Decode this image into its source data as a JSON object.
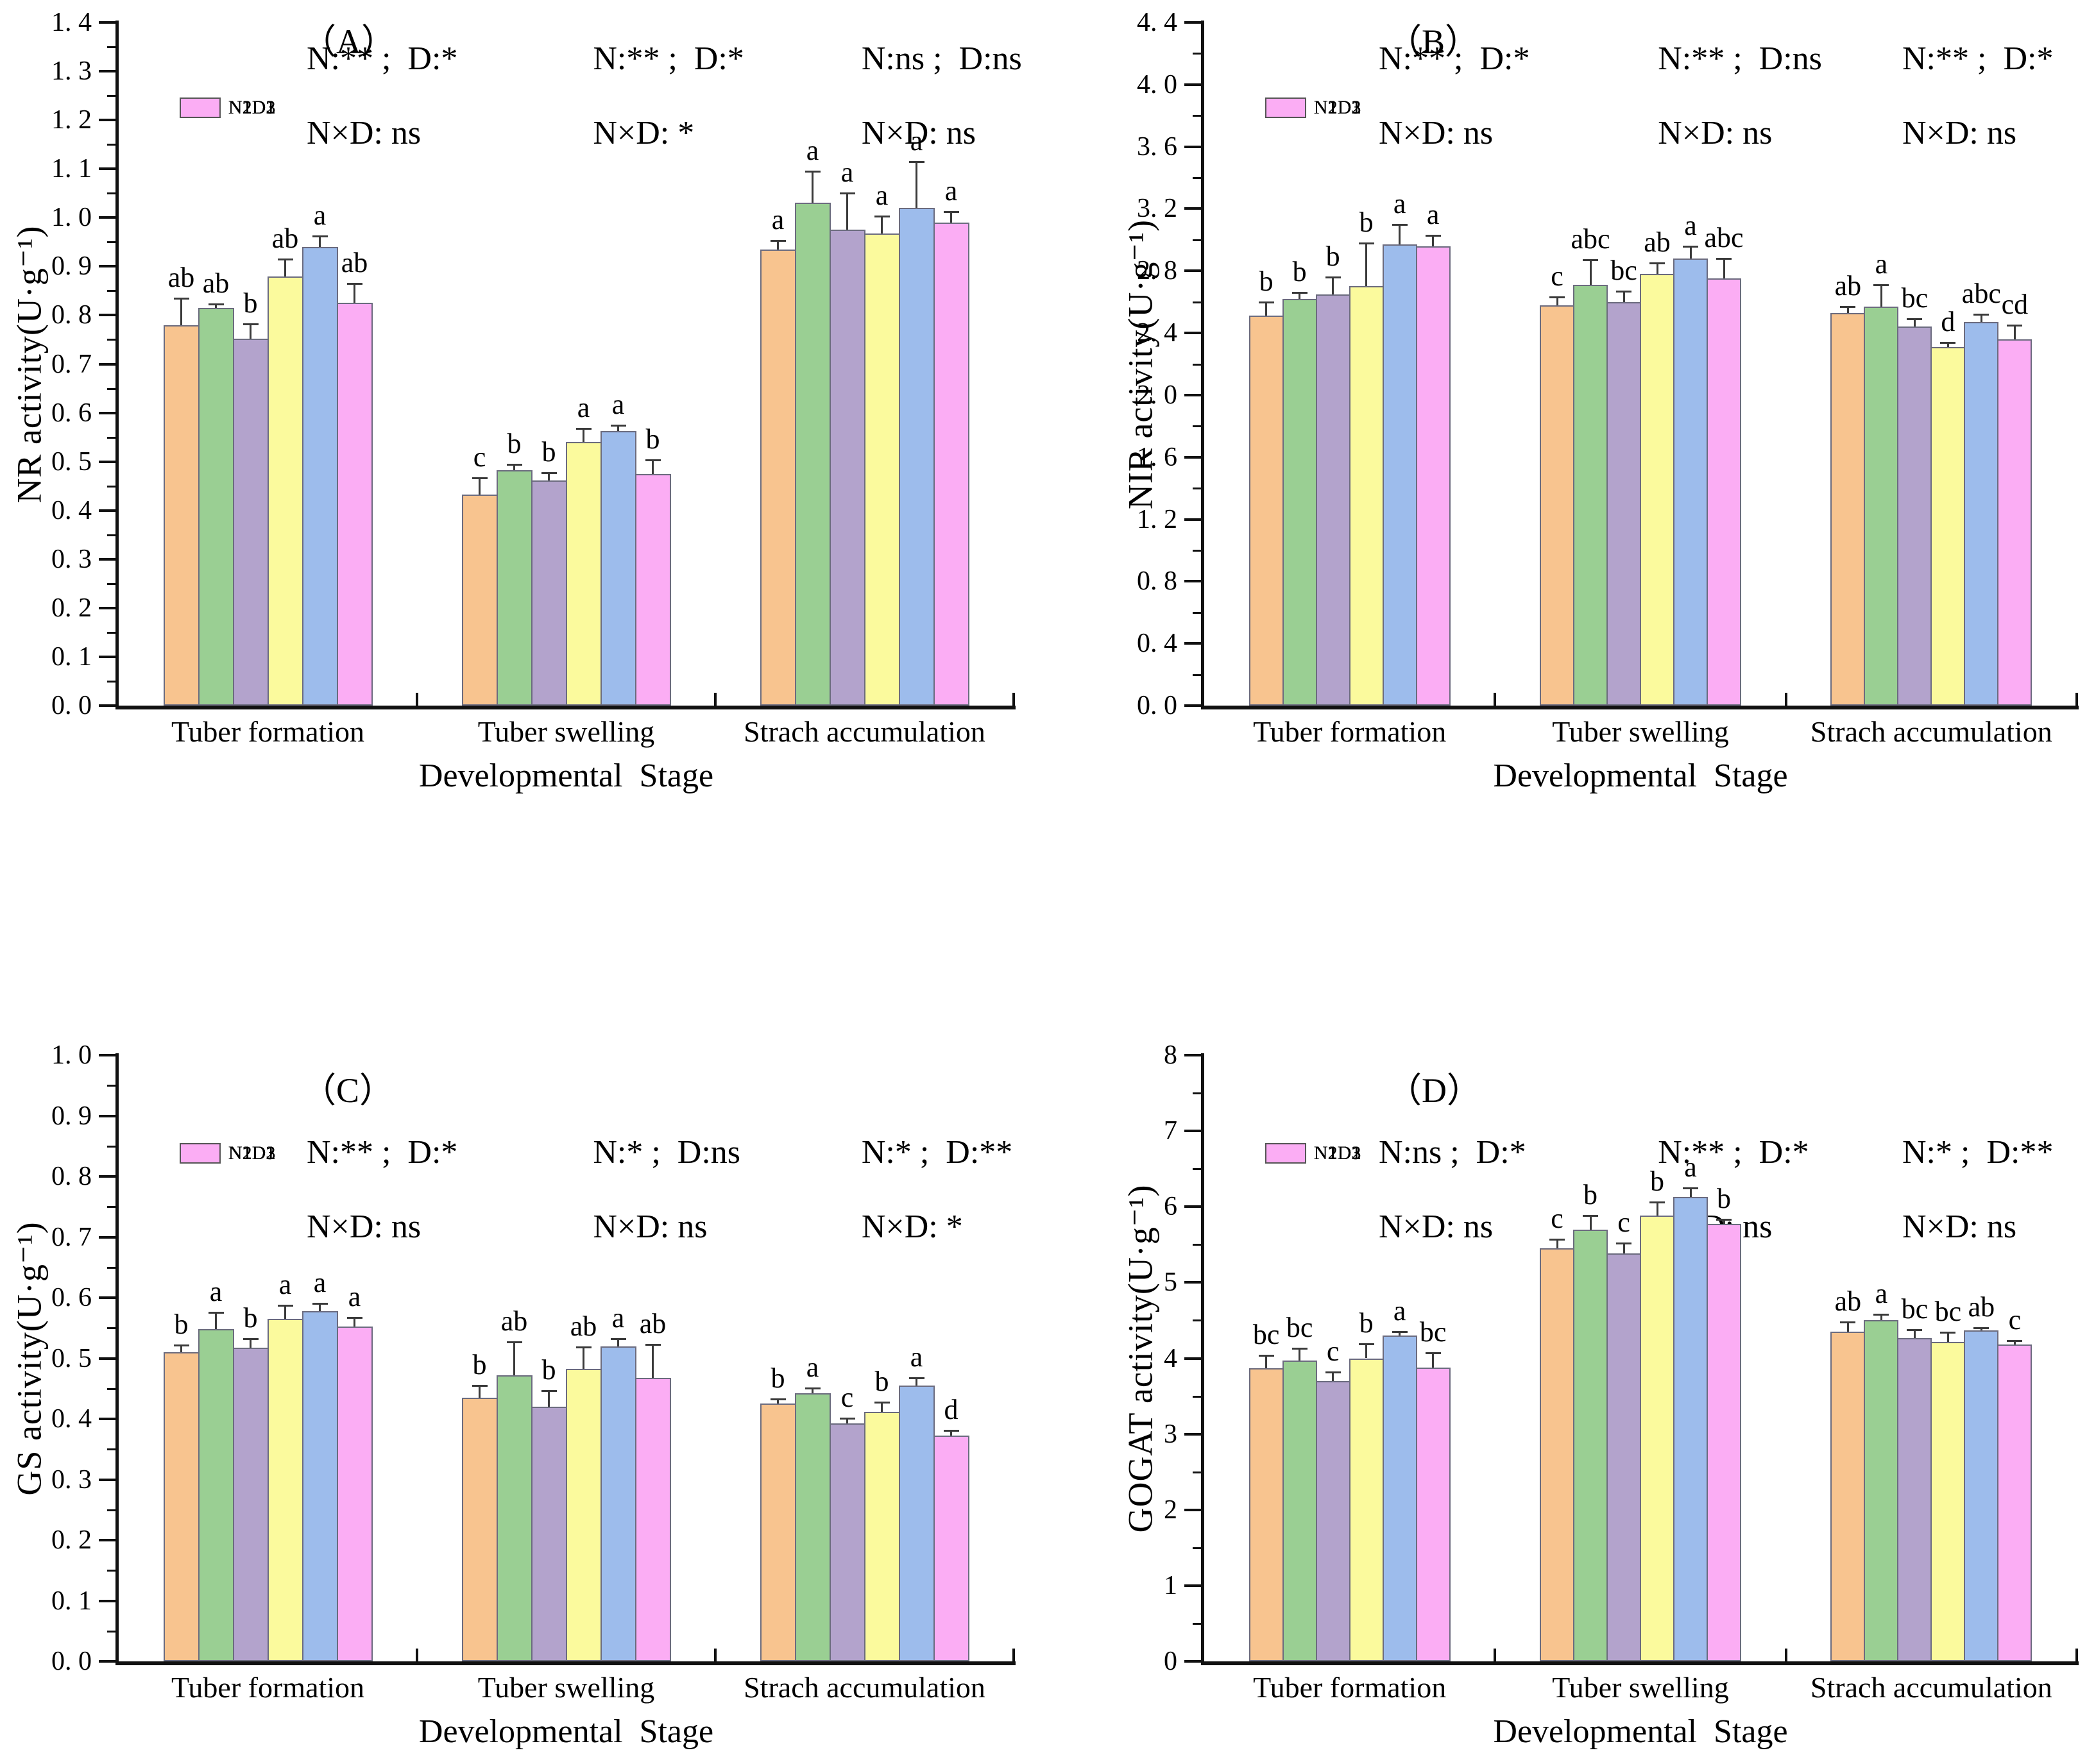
{
  "figure": {
    "xlabel": "Developmental  Stage",
    "categories": [
      "Tuber formation",
      "Tuber swelling",
      "Strach accumulation"
    ],
    "legend_labels": [
      "N1D1",
      "N1D2",
      "N1D3",
      "N2D1",
      "N2D2",
      "N2D3"
    ],
    "series_colors": {
      "N1D1": "#F8C48F",
      "N1D2": "#9ACF93",
      "N1D3": "#B3A3CC",
      "N2D1": "#FBFA9D",
      "N2D2": "#9DBCEC",
      "N2D3": "#FBADF4"
    },
    "bar_border_color": "#6b6b7e",
    "axis_color": "#111111",
    "error_bar_color": "#3a3a3a"
  },
  "chart_data": [
    {
      "id": "A",
      "type": "bar",
      "title": "（A）",
      "ylabel": "NR activity(U·g⁻¹)",
      "xlabel": "Developmental  Stage",
      "categories": [
        "Tuber formation",
        "Tuber swelling",
        "Strach accumulation"
      ],
      "ylim": [
        0,
        1.4
      ],
      "grid": false,
      "legend_position": "top-left",
      "ytick_values": [
        0,
        0.1,
        0.2,
        0.3,
        0.4,
        0.5,
        0.6,
        0.7,
        0.8,
        0.9,
        1.0,
        1.1,
        1.2,
        1.3,
        1.4
      ],
      "ytick_labels": [
        "0. 0",
        "0. 1",
        "0. 2",
        "0. 3",
        "0. 4",
        "0. 5",
        "0. 6",
        "0. 7",
        "0. 8",
        "0. 9",
        "1. 0",
        "1. 1",
        "1. 2",
        "1. 3",
        "1. 4"
      ],
      "series": [
        {
          "name": "N1D1",
          "color": "#F8C48F",
          "values": [
            0.78,
            0.432,
            0.935
          ],
          "errors": [
            0.055,
            0.035,
            0.018
          ],
          "letters": [
            "ab",
            "c",
            "a"
          ]
        },
        {
          "name": "N1D2",
          "color": "#9ACF93",
          "values": [
            0.815,
            0.482,
            1.03
          ],
          "errors": [
            0.008,
            0.012,
            0.065
          ],
          "letters": [
            "ab",
            "b",
            "a"
          ]
        },
        {
          "name": "N1D3",
          "color": "#B3A3CC",
          "values": [
            0.752,
            0.462,
            0.975
          ],
          "errors": [
            0.03,
            0.015,
            0.075
          ],
          "letters": [
            "b",
            "b",
            "a"
          ]
        },
        {
          "name": "N2D1",
          "color": "#FBFA9D",
          "values": [
            0.88,
            0.54,
            0.968
          ],
          "errors": [
            0.035,
            0.028,
            0.035
          ],
          "letters": [
            "ab",
            "a",
            "a"
          ]
        },
        {
          "name": "N2D2",
          "color": "#9DBCEC",
          "values": [
            0.94,
            0.562,
            1.02
          ],
          "errors": [
            0.022,
            0.012,
            0.095
          ],
          "letters": [
            "a",
            "a",
            "a"
          ]
        },
        {
          "name": "N2D3",
          "color": "#FBADF4",
          "values": [
            0.825,
            0.475,
            0.99
          ],
          "errors": [
            0.04,
            0.028,
            0.022
          ],
          "letters": [
            "ab",
            "b",
            "a"
          ]
        }
      ],
      "stats": [
        {
          "line1": "N:** ;  D:*",
          "line2": "N×D: ns"
        },
        {
          "line1": "N:** ;  D:*",
          "line2": "N×D: *"
        },
        {
          "line1": "N:ns ;  D:ns",
          "line2": "N×D: ns"
        }
      ]
    },
    {
      "id": "B",
      "type": "bar",
      "title": "（B）",
      "ylabel": "NIR activity(U·g⁻¹)",
      "xlabel": "Developmental  Stage",
      "categories": [
        "Tuber formation",
        "Tuber swelling",
        "Strach accumulation"
      ],
      "ylim": [
        0,
        4.4
      ],
      "grid": false,
      "legend_position": "top-left",
      "ytick_values": [
        0,
        0.4,
        0.8,
        1.2,
        1.6,
        2.0,
        2.4,
        2.8,
        3.2,
        3.6,
        4.0,
        4.4
      ],
      "ytick_labels": [
        "0. 0",
        "0. 4",
        "0. 8",
        "1. 2",
        "1. 6",
        "2. 0",
        "2. 4",
        "2. 8",
        "3. 2",
        "3. 6",
        "4. 0",
        "4. 4"
      ],
      "series": [
        {
          "name": "N1D1",
          "color": "#F8C48F",
          "values": [
            2.51,
            2.58,
            2.53
          ],
          "errors": [
            0.09,
            0.05,
            0.04
          ],
          "letters": [
            "b",
            "c",
            "ab"
          ]
        },
        {
          "name": "N1D2",
          "color": "#9ACF93",
          "values": [
            2.62,
            2.71,
            2.57
          ],
          "errors": [
            0.04,
            0.16,
            0.14
          ],
          "letters": [
            "b",
            "abc",
            "a"
          ]
        },
        {
          "name": "N1D3",
          "color": "#B3A3CC",
          "values": [
            2.65,
            2.6,
            2.44
          ],
          "errors": [
            0.11,
            0.07,
            0.05
          ],
          "letters": [
            "b",
            "bc",
            "bc"
          ]
        },
        {
          "name": "N2D1",
          "color": "#FBFA9D",
          "values": [
            2.7,
            2.78,
            2.31
          ],
          "errors": [
            0.28,
            0.07,
            0.03
          ],
          "letters": [
            "b",
            "ab",
            "d"
          ]
        },
        {
          "name": "N2D2",
          "color": "#9DBCEC",
          "values": [
            2.97,
            2.88,
            2.47
          ],
          "errors": [
            0.13,
            0.08,
            0.05
          ],
          "letters": [
            "a",
            "a",
            "abc"
          ]
        },
        {
          "name": "N2D3",
          "color": "#FBADF4",
          "values": [
            2.96,
            2.75,
            2.36
          ],
          "errors": [
            0.07,
            0.13,
            0.09
          ],
          "letters": [
            "a",
            "abc",
            "cd"
          ]
        }
      ],
      "stats": [
        {
          "line1": "N:** ;  D:*",
          "line2": "N×D: ns"
        },
        {
          "line1": "N:** ;  D:ns",
          "line2": "N×D: ns"
        },
        {
          "line1": "N:** ;  D:*",
          "line2": "N×D: ns"
        }
      ]
    },
    {
      "id": "C",
      "type": "bar",
      "title": "（C）",
      "ylabel": "GS activity(U·g⁻¹)",
      "xlabel": "Developmental  Stage",
      "categories": [
        "Tuber formation",
        "Tuber swelling",
        "Strach accumulation"
      ],
      "ylim": [
        0,
        1.0
      ],
      "grid": false,
      "legend_position": "top-left",
      "ytick_values": [
        0,
        0.1,
        0.2,
        0.3,
        0.4,
        0.5,
        0.6,
        0.7,
        0.8,
        0.9,
        1.0
      ],
      "ytick_labels": [
        "0. 0",
        "0. 1",
        "0. 2",
        "0. 3",
        "0. 4",
        "0. 5",
        "0. 6",
        "0. 7",
        "0. 8",
        "0. 9",
        "1. 0"
      ],
      "series": [
        {
          "name": "N1D1",
          "color": "#F8C48F",
          "values": [
            0.51,
            0.435,
            0.425
          ],
          "errors": [
            0.012,
            0.02,
            0.008
          ],
          "letters": [
            "b",
            "b",
            "b"
          ]
        },
        {
          "name": "N1D2",
          "color": "#9ACF93",
          "values": [
            0.548,
            0.472,
            0.442
          ],
          "errors": [
            0.028,
            0.055,
            0.009
          ],
          "letters": [
            "a",
            "ab",
            "a"
          ]
        },
        {
          "name": "N1D3",
          "color": "#B3A3CC",
          "values": [
            0.517,
            0.42,
            0.393
          ],
          "errors": [
            0.015,
            0.027,
            0.008
          ],
          "letters": [
            "b",
            "b",
            "c"
          ]
        },
        {
          "name": "N2D1",
          "color": "#FBFA9D",
          "values": [
            0.565,
            0.483,
            0.412
          ],
          "errors": [
            0.022,
            0.035,
            0.016
          ],
          "letters": [
            "a",
            "ab",
            "b"
          ]
        },
        {
          "name": "N2D2",
          "color": "#9DBCEC",
          "values": [
            0.578,
            0.52,
            0.455
          ],
          "errors": [
            0.012,
            0.012,
            0.013
          ],
          "letters": [
            "a",
            "a",
            "a"
          ]
        },
        {
          "name": "N2D3",
          "color": "#FBADF4",
          "values": [
            0.552,
            0.468,
            0.373
          ],
          "errors": [
            0.015,
            0.055,
            0.008
          ],
          "letters": [
            "a",
            "ab",
            "d"
          ]
        }
      ],
      "stats": [
        {
          "line1": "N:** ;  D:*",
          "line2": "N×D: ns"
        },
        {
          "line1": "N:* ;  D:ns",
          "line2": "N×D: ns"
        },
        {
          "line1": "N:* ;  D:**",
          "line2": "N×D: *"
        }
      ]
    },
    {
      "id": "D",
      "type": "bar",
      "title": "（D）",
      "ylabel": "GOGAT activity(U·g⁻¹)",
      "xlabel": "Developmental  Stage",
      "categories": [
        "Tuber formation",
        "Tuber swelling",
        "Strach accumulation"
      ],
      "ylim": [
        0,
        8
      ],
      "grid": false,
      "legend_position": "top-left",
      "ytick_values": [
        0,
        1,
        2,
        3,
        4,
        5,
        6,
        7,
        8
      ],
      "ytick_labels": [
        "0",
        "1",
        "2",
        "3",
        "4",
        "5",
        "6",
        "7",
        "8"
      ],
      "series": [
        {
          "name": "N1D1",
          "color": "#F8C48F",
          "values": [
            3.87,
            5.45,
            4.35
          ],
          "errors": [
            0.17,
            0.12,
            0.13
          ],
          "letters": [
            "bc",
            "c",
            "ab"
          ]
        },
        {
          "name": "N1D2",
          "color": "#9ACF93",
          "values": [
            3.97,
            5.7,
            4.5
          ],
          "errors": [
            0.16,
            0.18,
            0.08
          ],
          "letters": [
            "bc",
            "b",
            "a"
          ]
        },
        {
          "name": "N1D3",
          "color": "#B3A3CC",
          "values": [
            3.7,
            5.38,
            4.27
          ],
          "errors": [
            0.12,
            0.14,
            0.11
          ],
          "letters": [
            "c",
            "c",
            "bc"
          ]
        },
        {
          "name": "N2D1",
          "color": "#FBFA9D",
          "values": [
            4.0,
            5.88,
            4.22
          ],
          "errors": [
            0.19,
            0.18,
            0.12
          ],
          "letters": [
            "b",
            "b",
            "bc"
          ]
        },
        {
          "name": "N2D2",
          "color": "#9DBCEC",
          "values": [
            4.3,
            6.13,
            4.37
          ],
          "errors": [
            0.05,
            0.12,
            0.03
          ],
          "letters": [
            "a",
            "a",
            "ab"
          ]
        },
        {
          "name": "N2D3",
          "color": "#FBADF4",
          "values": [
            3.88,
            5.77,
            4.18
          ],
          "errors": [
            0.19,
            0.06,
            0.05
          ],
          "letters": [
            "bc",
            "b",
            "c"
          ]
        }
      ],
      "stats": [
        {
          "line1": "N:ns ;  D:*",
          "line2": "N×D: ns"
        },
        {
          "line1": "N:** ;  D:*",
          "line2": "N×D: ns"
        },
        {
          "line1": "N:* ;  D:**",
          "line2": "N×D: ns"
        }
      ]
    }
  ]
}
